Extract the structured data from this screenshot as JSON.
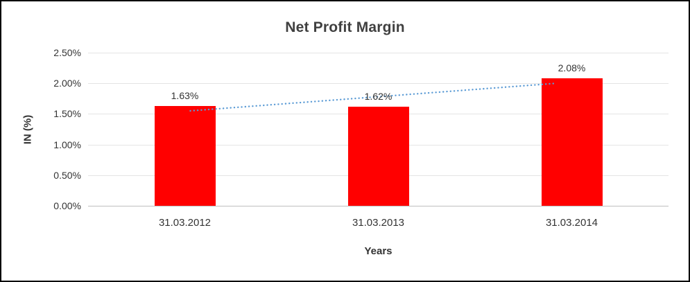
{
  "chart_data": {
    "type": "bar",
    "title": "Net Profit Margin",
    "categories": [
      "31.03.2012",
      "31.03.2013",
      "31.03.2014"
    ],
    "values": [
      1.63,
      1.62,
      2.08
    ],
    "data_labels": [
      "1.63%",
      "1.62%",
      "2.08%"
    ],
    "xlabel": "Years",
    "ylabel": "IN (%)",
    "ylim": [
      0,
      2.5
    ],
    "ytick_values": [
      0,
      0.5,
      1.0,
      1.5,
      2.0,
      2.5
    ],
    "ytick_labels": [
      "0.00%",
      "0.50%",
      "1.00%",
      "1.50%",
      "2.00%",
      "2.50%"
    ],
    "bar_color": "#FF0000",
    "trendline": {
      "type": "linear",
      "style": "dotted",
      "color": "#5B9BD5",
      "start_value": 1.55,
      "end_value": 2.0
    },
    "grid": true,
    "legend": false
  },
  "colors": {
    "title_text": "#404040",
    "axis_text": "#333333",
    "gridline": "#E4E4E4",
    "axis_line": "#BFBFBF",
    "frame_border": "#000000"
  }
}
